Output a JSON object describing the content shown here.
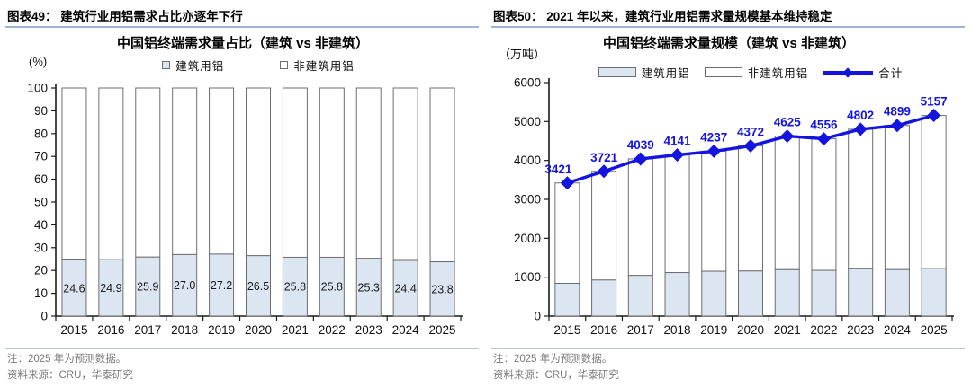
{
  "panels": [
    {
      "heading": "图表49：  建筑行业用铝需求占比亦逐年下行",
      "note": "注：2025 年为预测数据。",
      "source": "资料来源：CRU，华泰研究"
    },
    {
      "heading": "图表50：  2021 年以来，建筑行业用铝需求量规模基本维持稳定",
      "note": "注：2025 年为预测数据。",
      "source": "资料来源：CRU，华泰研究"
    }
  ],
  "chart_data": [
    {
      "type": "bar",
      "stacked": true,
      "title": "中国铝终端需求量占比（建筑 vs 非建筑）",
      "unit_label": "(%)",
      "xlabel": "",
      "ylabel": "(%)",
      "ylim": [
        0,
        100
      ],
      "ytick": 10,
      "grid": false,
      "legend_position": "top",
      "categories": [
        "2015",
        "2016",
        "2017",
        "2018",
        "2019",
        "2020",
        "2021",
        "2022",
        "2023",
        "2024",
        "2025"
      ],
      "series": [
        {
          "name": "建筑用铝",
          "color": "#dce6f2",
          "values": [
            24.6,
            24.9,
            25.9,
            27.0,
            27.2,
            26.5,
            25.8,
            25.8,
            25.3,
            24.4,
            23.8
          ],
          "labels": [
            "24.6",
            "24.9",
            "25.9",
            "27.0",
            "27.2",
            "26.5",
            "25.8",
            "25.8",
            "25.3",
            "24.4",
            "23.8"
          ]
        },
        {
          "name": "非建筑用铝",
          "color": "#ffffff",
          "values": [
            75.4,
            75.1,
            74.1,
            73.0,
            72.8,
            73.5,
            74.2,
            74.2,
            74.7,
            75.6,
            76.2
          ]
        }
      ]
    },
    {
      "type": "bar+line",
      "stacked": true,
      "title": "中国铝终端需求量规模（建筑 vs 非建筑）",
      "unit_label": "（万吨）",
      "xlabel": "",
      "ylabel": "（万吨）",
      "ylim": [
        0,
        6000
      ],
      "ytick": 1000,
      "grid": false,
      "legend_position": "top",
      "categories": [
        "2015",
        "2016",
        "2017",
        "2018",
        "2019",
        "2020",
        "2021",
        "2022",
        "2023",
        "2024",
        "2025"
      ],
      "series": [
        {
          "name": "建筑用铝",
          "color": "#dce6f2",
          "values": [
            842,
            927,
            1046,
            1118,
            1152,
            1159,
            1193,
            1175,
            1215,
            1195,
            1227
          ]
        },
        {
          "name": "非建筑用铝",
          "color": "#ffffff",
          "values": [
            2579,
            2794,
            2993,
            3023,
            3085,
            3213,
            3432,
            3381,
            3587,
            3704,
            3930
          ]
        },
        {
          "name": "合计",
          "type": "line",
          "color": "#1414e0",
          "show_labels": true,
          "values": [
            3421,
            3721,
            4039,
            4141,
            4237,
            4372,
            4625,
            4556,
            4802,
            4899,
            5157
          ]
        }
      ]
    }
  ],
  "colors": {
    "bar_fill": "#dce6f2",
    "bar_stroke": "#6e6e6e",
    "line_blue": "#1414e0",
    "axis": "#1a1a1a",
    "heading_rule": "#9db3d0",
    "footer_rule": "#b6c5d8",
    "note_text": "#787878"
  }
}
